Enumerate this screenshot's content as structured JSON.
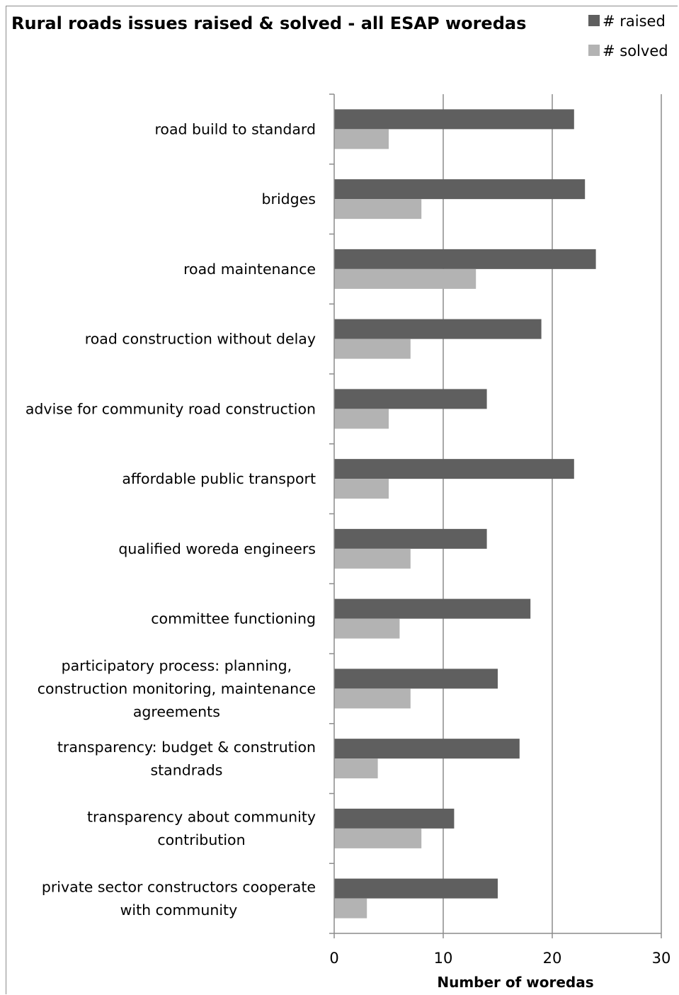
{
  "chart_data": {
    "type": "bar",
    "orientation": "horizontal",
    "title": "Rural roads issues raised & solved - all ESAP woredas",
    "xlabel": "Number of woredas",
    "ylabel": "",
    "xlim": [
      0,
      30
    ],
    "xticks": [
      0,
      10,
      20,
      30
    ],
    "grid": "vertical",
    "legend_position": "top-right",
    "categories": [
      "road build to standard",
      "bridges",
      "road maintenance",
      "road construction without delay",
      "advise for community road construction",
      "affordable public transport",
      "qualified woreda engineers",
      "committee functioning",
      "participatory process: planning, construction monitoring, maintenance agreements",
      "transparency: budget & constrution standrads",
      "transparency about community contribution",
      "private sector constructors cooperate with community"
    ],
    "category_lines": [
      [
        "road build to standard"
      ],
      [
        "bridges"
      ],
      [
        "road maintenance"
      ],
      [
        "road construction without delay"
      ],
      [
        "advise for community road construction"
      ],
      [
        "affordable public transport"
      ],
      [
        "qualified woreda engineers"
      ],
      [
        "committee functioning"
      ],
      [
        "participatory process: planning,",
        "construction monitoring, maintenance",
        "agreements"
      ],
      [
        "transparency: budget & constrution",
        "standrads"
      ],
      [
        "transparency about community",
        "contribution"
      ],
      [
        "private sector constructors cooperate",
        "with community"
      ]
    ],
    "series": [
      {
        "name": "# raised",
        "color": "#5f5f5f",
        "values": [
          22,
          23,
          24,
          19,
          14,
          22,
          14,
          18,
          15,
          17,
          11,
          15
        ]
      },
      {
        "name": "# solved",
        "color": "#b3b3b3",
        "values": [
          5,
          8,
          13,
          7,
          5,
          5,
          7,
          6,
          7,
          4,
          8,
          3
        ]
      }
    ],
    "colors": {
      "grid": "#8c8c8c",
      "axis": "#8c8c8c",
      "frame": "#8c8c8c"
    }
  }
}
